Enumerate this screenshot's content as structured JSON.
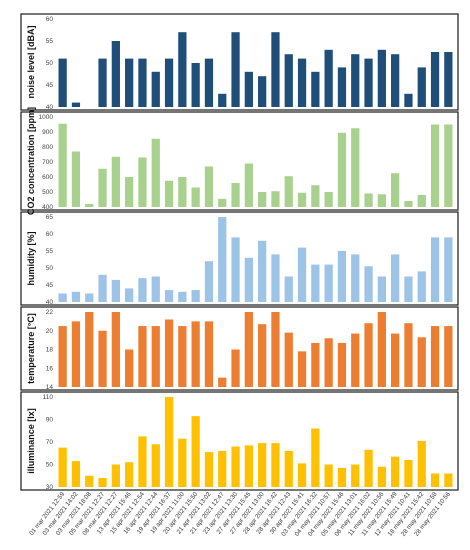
{
  "chart_data": {
    "type": "bar",
    "categories": [
      "01 mar 2021 12:59",
      "03 mar 2021 14:02",
      "03 mar 2021 18:08",
      "05 mar 2021 12:27",
      "08 mar 2021 12:27",
      "13 apr 2021 15:46",
      "15 apr 2021 12:54",
      "16 apr 2021 12:44",
      "19 apr 2021 16:37",
      "19 apr 2021 11:00",
      "20 apr 2021 15:50",
      "21 apr 2021 13:02",
      "21 apr 2021 12:47",
      "23 apr 2021 13:30",
      "27 apr 2021 15:45",
      "27 apr 2021 13:00",
      "28 apr 2021 16:42",
      "28 apr 2021 12:43",
      "30 apr 2021 15:41",
      "03 may 2021 16:32",
      "04 may 2021 10:57",
      "04 may 2021 15:46",
      "05 may 2021 13:01",
      "06 may 2021 16:02",
      "11 may 2021 10:56",
      "11 may 2021 15:49",
      "12 may 2021 10:41",
      "18 may 2021 15:42",
      "28 may 2021 10:58",
      "28 may 2021 10:56"
    ],
    "x_axis_labels": [
      "01 mar 2021 12:59",
      "03 mar 2021 14:02",
      "03 mar 2021 18:08",
      "05 mar 2021 12:27",
      "08 mar 2021 12:27",
      "13 apr 2021 15:46",
      "15 apr 2021 12:54",
      "16 apr 2021 12:44",
      "19 apr 2021 16:37",
      "19 apr 2021 11:00",
      "20 apr 2021 15:50",
      "21 apr 2021 13:02",
      "21 apr 2021 12:47",
      "23 apr 2021 13:30",
      "27 apr 2021 15:45",
      "27 apr 2021 13:00",
      "28 apr 2021 16:42",
      "28 apr 2021 12:43",
      "30 apr 2021 15:41",
      "03 may 2021 16:32",
      "04 may 2021 10:57",
      "04 may 2021 15:46",
      "05 may 2021 13:01",
      "06 may 2021 16:02",
      "11 may 2021 10:56",
      "11 may 2021 15:49",
      "12 may 2021 10:41",
      "18 may 2021 15:42",
      "28 may 2021 10:58",
      "28 may 2021 10:56"
    ],
    "panels": [
      {
        "ylabel": "noise level [dBA]",
        "color": "#1f4e79",
        "ylim": [
          40,
          60
        ],
        "yticks": [
          "40",
          "45",
          "50",
          "55",
          "60"
        ],
        "values": [
          51,
          41,
          39.5,
          51,
          55,
          51,
          51,
          48,
          51,
          57,
          50,
          51,
          43,
          57,
          48,
          47,
          57,
          52,
          51,
          48,
          53,
          49,
          52,
          51,
          53,
          52,
          43,
          49,
          52.5,
          52.5
        ]
      },
      {
        "ylabel": "CO2 concentration [ppm]",
        "color": "#a9d18e",
        "ylim": [
          400,
          1000
        ],
        "yticks": [
          "400",
          "500",
          "600",
          "700",
          "800",
          "900",
          "1000"
        ],
        "values": [
          955,
          770,
          420,
          655,
          735,
          600,
          730,
          855,
          575,
          600,
          530,
          670,
          455,
          560,
          690,
          500,
          505,
          605,
          495,
          545,
          500,
          895,
          925,
          490,
          485,
          625,
          440,
          480,
          950,
          950
        ]
      },
      {
        "ylabel": "humidity [%]",
        "color": "#9dc3e6",
        "ylim": [
          40,
          65
        ],
        "yticks": [
          "40",
          "45",
          "50",
          "55",
          "60",
          "65"
        ],
        "values": [
          42.5,
          43,
          42.5,
          48,
          46.5,
          44,
          47,
          47.5,
          43.5,
          43,
          43.5,
          52,
          65,
          59,
          53,
          58,
          54,
          47.5,
          56,
          51,
          51,
          55,
          54,
          50.5,
          47.5,
          54,
          47.5,
          49,
          59,
          59
        ]
      },
      {
        "ylabel": "temperature [°C]",
        "color": "#ed7d31",
        "ylim": [
          14,
          22
        ],
        "yticks": [
          "14",
          "16",
          "18",
          "20",
          "22"
        ],
        "values": [
          20.5,
          21,
          22.5,
          20,
          22.5,
          18,
          20.5,
          20.5,
          21.2,
          20.5,
          21,
          21,
          15,
          18,
          22.7,
          20.7,
          22.5,
          19.8,
          17.8,
          18.7,
          19.2,
          18.7,
          19.7,
          20.8,
          22.8,
          19.7,
          20.8,
          19.3,
          20.5,
          20.5
        ]
      },
      {
        "ylabel": "illuminance [lx]",
        "color": "#ffc000",
        "ylim": [
          30,
          110
        ],
        "yticks": [
          "30",
          "50",
          "70",
          "90",
          "110"
        ],
        "values": [
          65,
          53,
          40,
          38,
          50,
          52,
          75,
          68,
          112,
          73,
          93,
          61,
          62,
          66,
          67,
          69,
          69,
          62,
          51,
          82,
          50,
          47,
          50,
          63,
          48,
          57,
          54,
          71,
          42,
          42
        ]
      }
    ]
  }
}
